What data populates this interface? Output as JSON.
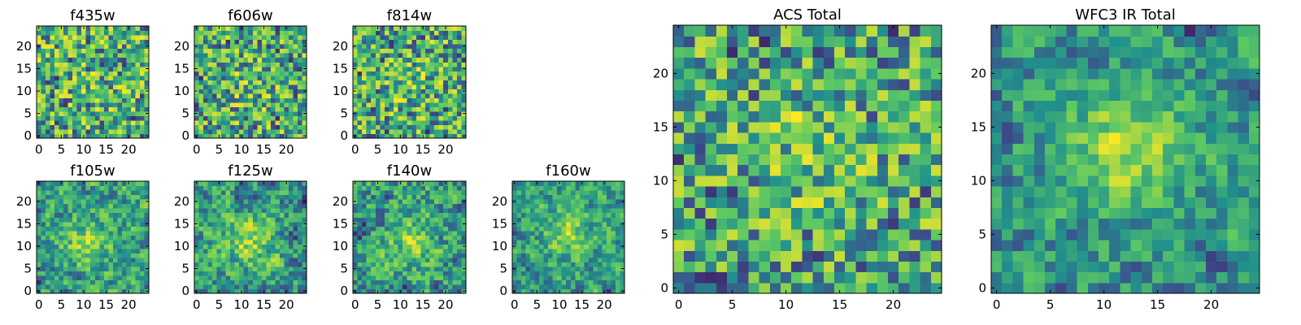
{
  "chart_data": {
    "type": "heatmap",
    "colormap": [
      "#440154",
      "#3b528b",
      "#21918c",
      "#5ec962",
      "#fde725"
    ],
    "panels": [
      {
        "id": "f435w",
        "title": "f435w",
        "grid": 25,
        "xticks": [
          0,
          5,
          10,
          15,
          20
        ],
        "yticks": [
          0,
          5,
          10,
          15,
          20
        ],
        "xlim": [
          0,
          24
        ],
        "ylim": [
          0,
          24
        ],
        "seed": 11,
        "peak": [
          12,
          12
        ],
        "peak_strength": 0.05,
        "smooth": 0
      },
      {
        "id": "f606w",
        "title": "f606w",
        "grid": 25,
        "xticks": [
          0,
          5,
          10,
          15,
          20
        ],
        "yticks": [
          0,
          5,
          10,
          15,
          20
        ],
        "xlim": [
          0,
          24
        ],
        "ylim": [
          0,
          24
        ],
        "seed": 23,
        "peak": [
          11,
          12
        ],
        "peak_strength": 0.12,
        "smooth": 0
      },
      {
        "id": "f814w",
        "title": "f814w",
        "grid": 25,
        "xticks": [
          0,
          5,
          10,
          15,
          20
        ],
        "yticks": [
          0,
          5,
          10,
          15,
          20
        ],
        "xlim": [
          0,
          24
        ],
        "ylim": [
          0,
          24
        ],
        "seed": 37,
        "peak": [
          12,
          12
        ],
        "peak_strength": 0.1,
        "smooth": 0
      },
      {
        "id": "f105w",
        "title": "f105w",
        "grid": 25,
        "xticks": [
          0,
          5,
          10,
          15,
          20
        ],
        "yticks": [
          0,
          5,
          10,
          15,
          20
        ],
        "xlim": [
          0,
          24
        ],
        "ylim": [
          0,
          24
        ],
        "seed": 41,
        "peak": [
          11,
          11
        ],
        "peak_strength": 0.35,
        "smooth": 1
      },
      {
        "id": "f125w",
        "title": "f125w",
        "grid": 25,
        "xticks": [
          0,
          5,
          10,
          15,
          20
        ],
        "yticks": [
          0,
          5,
          10,
          15,
          20
        ],
        "xlim": [
          0,
          24
        ],
        "ylim": [
          0,
          24
        ],
        "seed": 53,
        "peak": [
          12,
          11
        ],
        "peak_strength": 0.35,
        "smooth": 1
      },
      {
        "id": "f140w",
        "title": "f140w",
        "grid": 25,
        "xticks": [
          0,
          5,
          10,
          15,
          20
        ],
        "yticks": [
          0,
          5,
          10,
          15,
          20
        ],
        "xlim": [
          0,
          24
        ],
        "ylim": [
          0,
          24
        ],
        "seed": 67,
        "peak": [
          12,
          11
        ],
        "peak_strength": 0.3,
        "smooth": 1
      },
      {
        "id": "f160w",
        "title": "f160w",
        "grid": 25,
        "xticks": [
          0,
          5,
          10,
          15,
          20
        ],
        "yticks": [
          0,
          5,
          10,
          15,
          20
        ],
        "xlim": [
          0,
          24
        ],
        "ylim": [
          0,
          24
        ],
        "seed": 79,
        "peak": [
          12,
          13
        ],
        "peak_strength": 0.4,
        "smooth": 1
      },
      {
        "id": "acs-total",
        "title": "ACS Total",
        "grid": 25,
        "xticks": [
          0,
          5,
          10,
          15,
          20
        ],
        "yticks": [
          0,
          5,
          10,
          15,
          20
        ],
        "xlim": [
          0,
          24
        ],
        "ylim": [
          0,
          24
        ],
        "seed": 97,
        "peak": [
          12,
          13
        ],
        "peak_strength": 0.18,
        "smooth": 0
      },
      {
        "id": "wfc3-ir-total",
        "title": "WFC3 IR Total",
        "grid": 25,
        "xticks": [
          0,
          5,
          10,
          15,
          20
        ],
        "yticks": [
          0,
          5,
          10,
          15,
          20
        ],
        "xlim": [
          0,
          24
        ],
        "ylim": [
          0,
          24
        ],
        "seed": 113,
        "peak": [
          12,
          13
        ],
        "peak_strength": 0.5,
        "smooth": 1
      }
    ]
  }
}
